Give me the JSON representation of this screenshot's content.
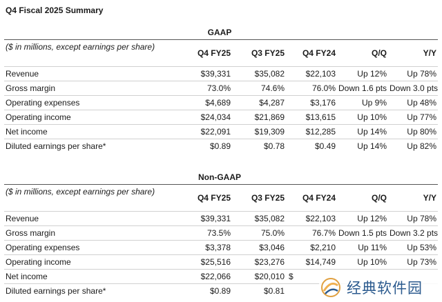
{
  "title": "Q4 Fiscal 2025 Summary",
  "gaap": {
    "heading": "GAAP",
    "note": "($ in millions, except earnings per share)",
    "columns": [
      "Q4 FY25",
      "Q3 FY25",
      "Q4 FY24",
      "Q/Q",
      "Y/Y"
    ],
    "rows": [
      {
        "label": "Revenue",
        "cells": [
          "$39,331",
          "$35,082",
          "$22,103",
          "Up 12%",
          "Up 78%"
        ]
      },
      {
        "label": "Gross margin",
        "cells": [
          "73.0%",
          "74.6%",
          "76.0%",
          "Down 1.6 pts",
          "Down 3.0 pts"
        ]
      },
      {
        "label": "Operating expenses",
        "cells": [
          "$4,689",
          "$4,287",
          "$3,176",
          "Up 9%",
          "Up 48%"
        ]
      },
      {
        "label": "Operating income",
        "cells": [
          "$24,034",
          "$21,869",
          "$13,615",
          "Up 10%",
          "Up 77%"
        ]
      },
      {
        "label": "Net income",
        "cells": [
          "$22,091",
          "$19,309",
          "$12,285",
          "Up 14%",
          "Up 80%"
        ]
      },
      {
        "label": "Diluted earnings per share*",
        "cells": [
          "$0.89",
          "$0.78",
          "$0.49",
          "Up 14%",
          "Up 82%"
        ]
      }
    ]
  },
  "nongaap": {
    "heading": "Non-GAAP",
    "note": "($ in millions, except earnings per share)",
    "columns": [
      "Q4 FY25",
      "Q3 FY25",
      "Q4 FY24",
      "Q/Q",
      "Y/Y"
    ],
    "rows": [
      {
        "label": "Revenue",
        "cells": [
          "$39,331",
          "$35,082",
          "$22,103",
          "Up 12%",
          "Up 78%"
        ]
      },
      {
        "label": "Gross margin",
        "cells": [
          "73.5%",
          "75.0%",
          "76.7%",
          "Down 1.5 pts",
          "Down 3.2 pts"
        ]
      },
      {
        "label": "Operating expenses",
        "cells": [
          "$3,378",
          "$3,046",
          "$2,210",
          "Up 11%",
          "Up 53%"
        ]
      },
      {
        "label": "Operating income",
        "cells": [
          "$25,516",
          "$23,276",
          "$14,749",
          "Up 10%",
          "Up 73%"
        ]
      },
      {
        "label": "Net income",
        "cells": [
          "$22,066",
          "$20,010",
          "$",
          "",
          ""
        ]
      },
      {
        "label": "Diluted earnings per share*",
        "cells": [
          "$0.89",
          "$0.81",
          "",
          "",
          ""
        ]
      }
    ]
  },
  "watermark": {
    "text": "经典软件园"
  }
}
